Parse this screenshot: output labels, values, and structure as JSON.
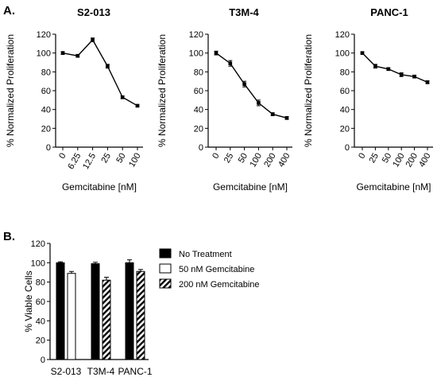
{
  "panels": {
    "a_label": "A.",
    "b_label": "B."
  },
  "chart_data": [
    {
      "type": "line",
      "title": "S2-013",
      "xlabel": "Gemcitabine [nM]",
      "ylabel": "% Normalized Proliferation",
      "categories": [
        "0",
        "6.25",
        "12.5",
        "25",
        "50",
        "100"
      ],
      "values": [
        100,
        97,
        114,
        86,
        53,
        44
      ],
      "errors": [
        1.5,
        1.5,
        2,
        2,
        1.5,
        1
      ],
      "ylim": [
        0,
        120
      ],
      "yticks": [
        0,
        20,
        40,
        60,
        80,
        100,
        120
      ]
    },
    {
      "type": "line",
      "title": "T3M-4",
      "xlabel": "Gemcitabine [nM]",
      "ylabel": "% Normalized Proliferation",
      "categories": [
        "0",
        "25",
        "50",
        "100",
        "200",
        "400"
      ],
      "values": [
        100,
        89,
        67,
        47,
        35,
        31
      ],
      "errors": [
        2,
        3,
        3,
        3,
        1.5,
        1.5
      ],
      "ylim": [
        0,
        120
      ],
      "yticks": [
        0,
        20,
        40,
        60,
        80,
        100,
        120
      ]
    },
    {
      "type": "line",
      "title": "PANC-1",
      "xlabel": "Gemcitabine [nM]",
      "ylabel": "% Normalized Proliferation",
      "categories": [
        "0",
        "25",
        "50",
        "100",
        "200",
        "400"
      ],
      "values": [
        100,
        86,
        83,
        77,
        75,
        69
      ],
      "errors": [
        1,
        2,
        1.5,
        2,
        1.5,
        1.5
      ],
      "ylim": [
        0,
        120
      ],
      "yticks": [
        0,
        20,
        40,
        60,
        80,
        100,
        120
      ]
    },
    {
      "type": "bar",
      "title": "",
      "xlabel": "",
      "ylabel": "% Viable Cells",
      "categories": [
        "S2-013",
        "T3M-4",
        "PANC-1"
      ],
      "ylim": [
        0,
        120
      ],
      "yticks": [
        0,
        20,
        40,
        60,
        80,
        100,
        120
      ],
      "legend_position": "top-right",
      "series": [
        {
          "name": "No Treatment",
          "values": [
            100,
            99,
            100
          ],
          "errors": [
            1,
            1.5,
            3
          ],
          "fill": "solid"
        },
        {
          "name": "50 nM Gemcitabine",
          "values": [
            89,
            null,
            null
          ],
          "errors": [
            2,
            null,
            null
          ],
          "fill": "open"
        },
        {
          "name": "200 nM Gemcitabine",
          "values": [
            null,
            82,
            91
          ],
          "errors": [
            null,
            3,
            2
          ],
          "fill": "hatched"
        }
      ]
    }
  ]
}
